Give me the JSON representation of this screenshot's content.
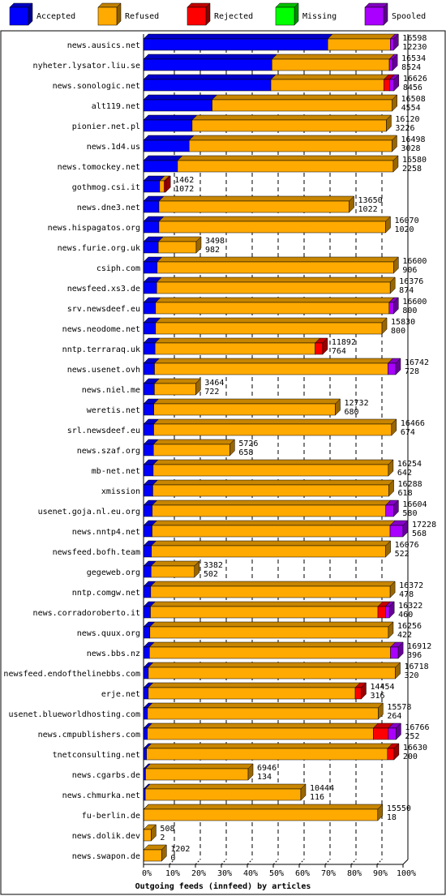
{
  "chart_data": {
    "type": "bar",
    "orientation": "horizontal",
    "stacked": true,
    "xlabel": "Outgoing feeds (innfeed) by articles",
    "xlim": [
      0,
      100
    ],
    "x_unit": "%",
    "x_ticks": [
      "0%",
      "10%",
      "20%",
      "30%",
      "40%",
      "50%",
      "60%",
      "70%",
      "80%",
      "90%",
      "100%"
    ],
    "grid": true,
    "legend_position": "top",
    "legend": [
      {
        "name": "Accepted",
        "color": "#0000ff"
      },
      {
        "name": "Refused",
        "color": "#ffaa00"
      },
      {
        "name": "Rejected",
        "color": "#ff0000"
      },
      {
        "name": "Missing",
        "color": "#00ff00"
      },
      {
        "name": "Spooled",
        "color": "#aa00ff"
      }
    ],
    "max_total": 17228,
    "rows": [
      {
        "name": "news.ausics.net",
        "total": "16598",
        "accepted": "12230",
        "acc": 12230,
        "ref": 4150,
        "rej": 0,
        "spo": 218
      },
      {
        "name": "nyheter.lysator.liu.se",
        "total": "16534",
        "accepted": "8524",
        "acc": 8524,
        "ref": 7790,
        "rej": 0,
        "spo": 220
      },
      {
        "name": "news.sonologic.net",
        "total": "16626",
        "accepted": "8456",
        "acc": 8456,
        "ref": 7500,
        "rej": 380,
        "spo": 290
      },
      {
        "name": "alt119.net",
        "total": "16508",
        "accepted": "4554",
        "acc": 4554,
        "ref": 11954,
        "rej": 0,
        "spo": 0
      },
      {
        "name": "pionier.net.pl",
        "total": "16120",
        "accepted": "3226",
        "acc": 3226,
        "ref": 12894,
        "rej": 0,
        "spo": 0
      },
      {
        "name": "news.1d4.us",
        "total": "16498",
        "accepted": "3028",
        "acc": 3028,
        "ref": 13470,
        "rej": 0,
        "spo": 0
      },
      {
        "name": "news.tomockey.net",
        "total": "16580",
        "accepted": "2258",
        "acc": 2258,
        "ref": 14322,
        "rej": 0,
        "spo": 0
      },
      {
        "name": "gothmog.csi.it",
        "total": "1462",
        "accepted": "1072",
        "acc": 1072,
        "ref": 300,
        "rej": 90,
        "spo": 0
      },
      {
        "name": "news.dne3.net",
        "total": "13650",
        "accepted": "1022",
        "acc": 1022,
        "ref": 12628,
        "rej": 0,
        "spo": 0
      },
      {
        "name": "news.hispagatos.org",
        "total": "16070",
        "accepted": "1020",
        "acc": 1020,
        "ref": 15050,
        "rej": 0,
        "spo": 0
      },
      {
        "name": "news.furie.org.uk",
        "total": "3498",
        "accepted": "982",
        "acc": 982,
        "ref": 2516,
        "rej": 0,
        "spo": 0
      },
      {
        "name": "csiph.com",
        "total": "16600",
        "accepted": "906",
        "acc": 906,
        "ref": 15694,
        "rej": 0,
        "spo": 0
      },
      {
        "name": "newsfeed.xs3.de",
        "total": "16376",
        "accepted": "874",
        "acc": 874,
        "ref": 15502,
        "rej": 0,
        "spo": 0
      },
      {
        "name": "srv.newsdeef.eu",
        "total": "16600",
        "accepted": "800",
        "acc": 800,
        "ref": 15500,
        "rej": 0,
        "spo": 300
      },
      {
        "name": "news.neodome.net",
        "total": "15830",
        "accepted": "800",
        "acc": 800,
        "ref": 15030,
        "rej": 0,
        "spo": 0
      },
      {
        "name": "nntp.terraraq.uk",
        "total": "11892",
        "accepted": "764",
        "acc": 764,
        "ref": 10628,
        "rej": 500,
        "spo": 0
      },
      {
        "name": "news.usenet.ovh",
        "total": "16742",
        "accepted": "728",
        "acc": 728,
        "ref": 15500,
        "rej": 0,
        "spo": 514
      },
      {
        "name": "news.niel.me",
        "total": "3464",
        "accepted": "722",
        "acc": 722,
        "ref": 2742,
        "rej": 0,
        "spo": 0
      },
      {
        "name": "weretis.net",
        "total": "12732",
        "accepted": "680",
        "acc": 680,
        "ref": 12052,
        "rej": 0,
        "spo": 0
      },
      {
        "name": "srl.newsdeef.eu",
        "total": "16466",
        "accepted": "674",
        "acc": 674,
        "ref": 15792,
        "rej": 0,
        "spo": 0
      },
      {
        "name": "news.szaf.org",
        "total": "5726",
        "accepted": "658",
        "acc": 658,
        "ref": 5068,
        "rej": 0,
        "spo": 0
      },
      {
        "name": "mb-net.net",
        "total": "16254",
        "accepted": "642",
        "acc": 642,
        "ref": 15612,
        "rej": 0,
        "spo": 0
      },
      {
        "name": "xmission",
        "total": "16288",
        "accepted": "618",
        "acc": 618,
        "ref": 15670,
        "rej": 0,
        "spo": 0
      },
      {
        "name": "usenet.goja.nl.eu.org",
        "total": "16604",
        "accepted": "580",
        "acc": 580,
        "ref": 15500,
        "rej": 0,
        "spo": 524
      },
      {
        "name": "news.nntp4.net",
        "total": "17228",
        "accepted": "568",
        "acc": 568,
        "ref": 15800,
        "rej": 0,
        "spo": 860
      },
      {
        "name": "newsfeed.bofh.team",
        "total": "16076",
        "accepted": "522",
        "acc": 522,
        "ref": 15554,
        "rej": 0,
        "spo": 0
      },
      {
        "name": "gegeweb.org",
        "total": "3382",
        "accepted": "502",
        "acc": 502,
        "ref": 2880,
        "rej": 0,
        "spo": 0
      },
      {
        "name": "nntp.comgw.net",
        "total": "16372",
        "accepted": "478",
        "acc": 478,
        "ref": 15894,
        "rej": 0,
        "spo": 0
      },
      {
        "name": "news.corradoroberto.it",
        "total": "16322",
        "accepted": "460",
        "acc": 460,
        "ref": 15100,
        "rej": 500,
        "spo": 262
      },
      {
        "name": "news.quux.org",
        "total": "16256",
        "accepted": "422",
        "acc": 422,
        "ref": 15834,
        "rej": 0,
        "spo": 0
      },
      {
        "name": "news.bbs.nz",
        "total": "16912",
        "accepted": "396",
        "acc": 396,
        "ref": 16000,
        "rej": 0,
        "spo": 516
      },
      {
        "name": "newsfeed.endofthelinebbs.com",
        "total": "16718",
        "accepted": "320",
        "acc": 320,
        "ref": 16398,
        "rej": 0,
        "spo": 0
      },
      {
        "name": "erje.net",
        "total": "14454",
        "accepted": "316",
        "acc": 316,
        "ref": 13738,
        "rej": 400,
        "spo": 0
      },
      {
        "name": "usenet.blueworldhosting.com",
        "total": "15578",
        "accepted": "264",
        "acc": 264,
        "ref": 15314,
        "rej": 0,
        "spo": 0
      },
      {
        "name": "news.cmpublishers.com",
        "total": "16766",
        "accepted": "252",
        "acc": 252,
        "ref": 15000,
        "rej": 1000,
        "spo": 514
      },
      {
        "name": "tnetconsulting.net",
        "total": "16630",
        "accepted": "200",
        "acc": 200,
        "ref": 16000,
        "rej": 430,
        "spo": 0
      },
      {
        "name": "news.cgarbs.de",
        "total": "6946",
        "accepted": "134",
        "acc": 134,
        "ref": 6812,
        "rej": 0,
        "spo": 0
      },
      {
        "name": "news.chmurka.net",
        "total": "10444",
        "accepted": "116",
        "acc": 116,
        "ref": 10328,
        "rej": 0,
        "spo": 0
      },
      {
        "name": "fu-berlin.de",
        "total": "15550",
        "accepted": "18",
        "acc": 18,
        "ref": 15532,
        "rej": 0,
        "spo": 0
      },
      {
        "name": "news.dolik.dev",
        "total": "508",
        "accepted": "2",
        "acc": 2,
        "ref": 506,
        "rej": 0,
        "spo": 0
      },
      {
        "name": "news.swapon.de",
        "total": "1202",
        "accepted": "0",
        "acc": 0,
        "ref": 1202,
        "rej": 0,
        "spo": 0
      }
    ]
  }
}
